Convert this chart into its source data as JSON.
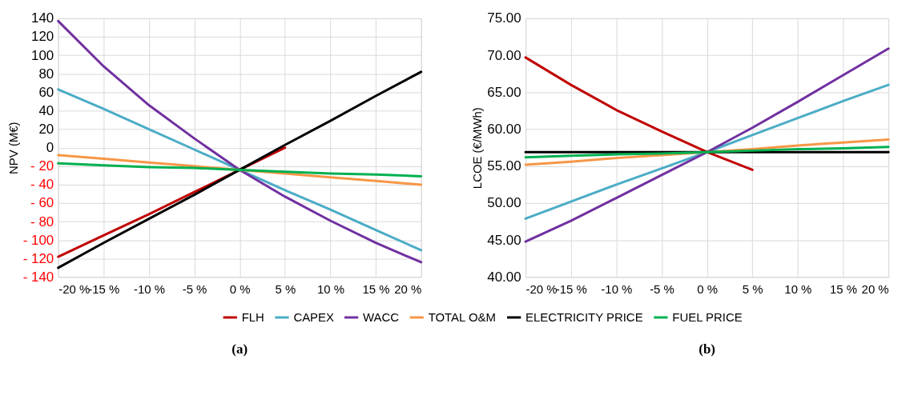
{
  "chart_data": [
    {
      "type": "line",
      "title": "(a)",
      "ylabel": "NPV (M€)",
      "x": [
        -20,
        -15,
        -10,
        -5,
        0,
        5,
        10,
        15,
        20
      ],
      "xlim": [
        -20,
        20
      ],
      "xticks": [
        {
          "value": -20,
          "label": "-20 %"
        },
        {
          "value": -15,
          "label": "-15 %"
        },
        {
          "value": -10,
          "label": "-10 %"
        },
        {
          "value": -5,
          "label": "-5 %"
        },
        {
          "value": 0,
          "label": "0 %"
        },
        {
          "value": 5,
          "label": "5 %"
        },
        {
          "value": 10,
          "label": "10 %"
        },
        {
          "value": 15,
          "label": "15 %"
        },
        {
          "value": 20,
          "label": "20 %"
        }
      ],
      "ylim": [
        -140,
        140
      ],
      "yticks": [
        {
          "value": -140,
          "label": "- 140"
        },
        {
          "value": -120,
          "label": "- 120"
        },
        {
          "value": -100,
          "label": "- 100"
        },
        {
          "value": -80,
          "label": "- 80"
        },
        {
          "value": -60,
          "label": "- 60"
        },
        {
          "value": -40,
          "label": "- 40"
        },
        {
          "value": -20,
          "label": "- 20"
        },
        0,
        20,
        40,
        60,
        80,
        100,
        120,
        140
      ],
      "grid": true,
      "legend": "bottom",
      "marker": "none",
      "line_style": "solid",
      "series": [
        {
          "name": "FLH",
          "color": "#c00000",
          "values": [
            -118,
            -95,
            -72,
            -48,
            -24,
            0,
            null,
            null,
            null
          ]
        },
        {
          "name": "CAPEX",
          "color": "#4bacc6",
          "values": [
            63,
            42,
            20,
            -2,
            -24,
            -46,
            -67,
            -89,
            -111
          ]
        },
        {
          "name": "WACC",
          "color": "#7030a0",
          "values": [
            137,
            88,
            46,
            10,
            -24,
            -53,
            -79,
            -103,
            -124
          ]
        },
        {
          "name": "TOTAL O&M",
          "color": "#f79646",
          "values": [
            -8,
            -12,
            -16,
            -20,
            -24,
            -28,
            -32,
            -36,
            -40
          ]
        },
        {
          "name": "ELECTRICITY PRICE",
          "color": "#000000",
          "values": [
            -130,
            -103,
            -77,
            -51,
            -24,
            3,
            29,
            56,
            82
          ]
        },
        {
          "name": "FUEL PRICE",
          "color": "#00b050",
          "values": [
            -17,
            -19,
            -21,
            -22,
            -24,
            -26,
            -28,
            -29,
            -31
          ]
        }
      ]
    },
    {
      "type": "line",
      "title": "(b)",
      "ylabel": "LCOE (€/MWh)",
      "x": [
        -20,
        -15,
        -10,
        -5,
        0,
        5,
        10,
        15,
        20
      ],
      "xlim": [
        -20,
        20
      ],
      "xticks": [
        {
          "value": -20,
          "label": "-20 %"
        },
        {
          "value": -15,
          "label": "-15 %"
        },
        {
          "value": -10,
          "label": "-10 %"
        },
        {
          "value": -5,
          "label": "-5 %"
        },
        {
          "value": 0,
          "label": "0 %"
        },
        {
          "value": 5,
          "label": "5 %"
        },
        {
          "value": 10,
          "label": "10 %"
        },
        {
          "value": 15,
          "label": "15 %"
        },
        {
          "value": 20,
          "label": "20 %"
        }
      ],
      "ylim": [
        40,
        75
      ],
      "yticks": [
        {
          "value": 40,
          "label": "40.00"
        },
        {
          "value": 45,
          "label": "45.00"
        },
        {
          "value": 50,
          "label": "50.00"
        },
        {
          "value": 55,
          "label": "55.00"
        },
        {
          "value": 60,
          "label": "60.00"
        },
        {
          "value": 65,
          "label": "65.00"
        },
        {
          "value": 70,
          "label": "70.00"
        },
        {
          "value": 75,
          "label": "75.00"
        }
      ],
      "grid": true,
      "marker": "none",
      "line_style": "solid",
      "series": [
        {
          "name": "FLH",
          "color": "#c00000",
          "values": [
            69.7,
            66.0,
            62.6,
            59.7,
            56.9,
            54.5,
            null,
            null,
            null
          ]
        },
        {
          "name": "CAPEX",
          "color": "#4bacc6",
          "values": [
            47.9,
            50.2,
            52.5,
            54.7,
            56.9,
            59.2,
            61.5,
            63.8,
            66.0
          ]
        },
        {
          "name": "WACC",
          "color": "#7030a0",
          "values": [
            44.8,
            47.6,
            50.7,
            53.8,
            56.9,
            60.2,
            63.7,
            67.3,
            70.9
          ]
        },
        {
          "name": "TOTAL O&M",
          "color": "#f79646",
          "values": [
            55.2,
            55.6,
            56.1,
            56.5,
            56.9,
            57.3,
            57.8,
            58.2,
            58.6
          ]
        },
        {
          "name": "ELECTRICITY PRICE",
          "color": "#000000",
          "values": [
            56.9,
            56.9,
            56.9,
            56.9,
            56.9,
            56.9,
            56.9,
            56.9,
            56.9
          ]
        },
        {
          "name": "FUEL PRICE",
          "color": "#00b050",
          "values": [
            56.2,
            56.4,
            56.6,
            56.7,
            56.9,
            57.1,
            57.3,
            57.4,
            57.6
          ]
        }
      ]
    }
  ]
}
